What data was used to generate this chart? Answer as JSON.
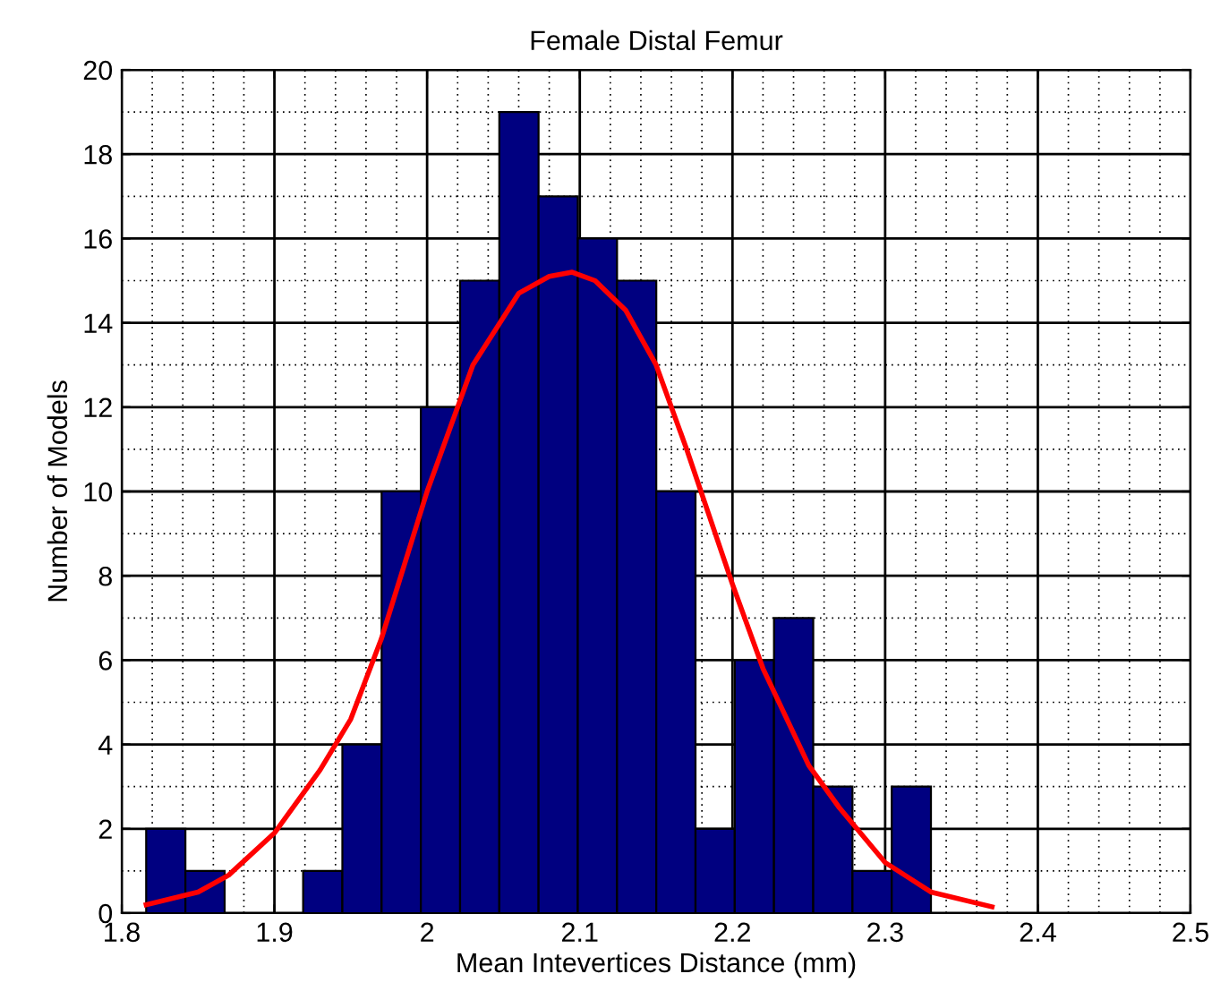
{
  "chart_data": {
    "type": "histogram",
    "title": "Female Distal Femur",
    "xlabel": "Mean Intevertices Distance (mm)",
    "ylabel": "Number of Models",
    "bins": [
      1.816,
      1.8417,
      1.8674,
      1.8931,
      1.9188,
      1.9445,
      1.9702,
      1.9959,
      2.0216,
      2.0473,
      2.073,
      2.0987,
      2.1244,
      2.1501,
      2.1758,
      2.2015,
      2.2272,
      2.2529,
      2.2786,
      2.3043,
      2.33
    ],
    "values": [
      2,
      1,
      0,
      0,
      1,
      4,
      10,
      12,
      15,
      19,
      17,
      16,
      15,
      10,
      2,
      6,
      7,
      3,
      1,
      3
    ],
    "color": "#000080",
    "series": [
      {
        "type": "line",
        "color": "#ff0000",
        "x": [
          1.816,
          1.85,
          1.87,
          1.9,
          1.93,
          1.95,
          1.97,
          2.0,
          2.03,
          2.06,
          2.08,
          2.095,
          2.11,
          2.13,
          2.15,
          2.17,
          2.2,
          2.22,
          2.25,
          2.27,
          2.3,
          2.33,
          2.37
        ],
        "values": [
          0.2,
          0.5,
          0.9,
          1.9,
          3.4,
          4.6,
          6.5,
          10.0,
          13.0,
          14.7,
          15.1,
          15.2,
          15.0,
          14.3,
          13.0,
          11.0,
          7.8,
          5.8,
          3.5,
          2.5,
          1.2,
          0.5,
          0.15
        ]
      }
    ],
    "xlim": [
      1.8,
      2.5
    ],
    "xticks": [
      1.8,
      1.9,
      2,
      2.1,
      2.2,
      2.3,
      2.4,
      2.5
    ],
    "ylim": [
      0,
      20
    ],
    "yticks": [
      0,
      2,
      4,
      6,
      8,
      10,
      12,
      14,
      16,
      18,
      20
    ],
    "grid": true
  }
}
